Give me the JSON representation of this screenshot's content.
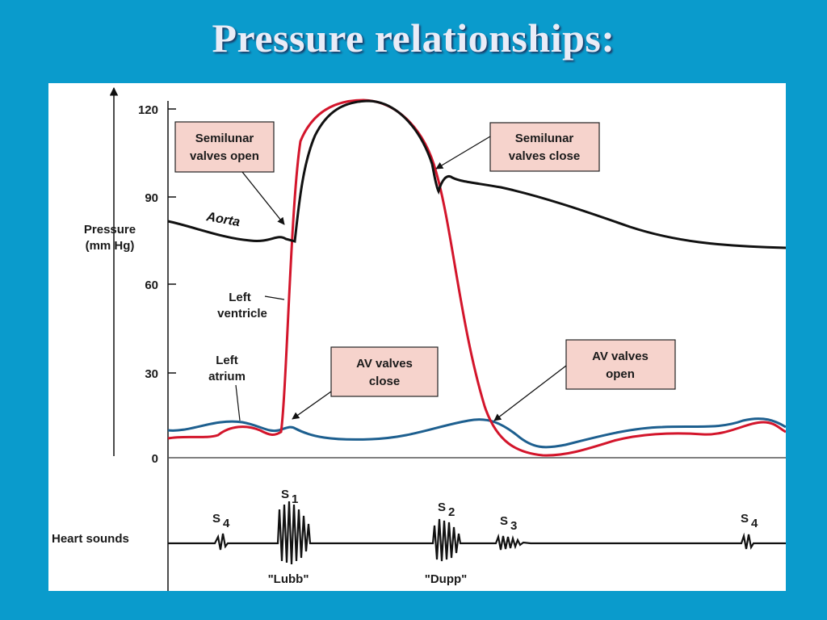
{
  "title": "Pressure relationships:",
  "axis": {
    "ylabel_line1": "Pressure",
    "ylabel_line2": "(mm Hg)",
    "ticks": [
      "120",
      "90",
      "60",
      "30",
      "0"
    ]
  },
  "curves": {
    "aorta": "Aorta",
    "left_ventricle_line1": "Left",
    "left_ventricle_line2": "ventricle",
    "left_atrium_line1": "Left",
    "left_atrium_line2": "atrium",
    "colors": {
      "aorta": "#111111",
      "left_ventricle": "#d3152b",
      "left_atrium": "#1d5f8f"
    }
  },
  "callouts": {
    "semilunar_open": [
      "Semilunar",
      "valves open"
    ],
    "semilunar_close": [
      "Semilunar",
      "valves close"
    ],
    "av_close": [
      "AV valves",
      "close"
    ],
    "av_open": [
      "AV valves",
      "open"
    ],
    "box_color": "#f6d3cc"
  },
  "heart_sounds": {
    "label": "Heart sounds",
    "s4_first": {
      "main": "S",
      "sub": "4"
    },
    "s1": {
      "main": "S",
      "sub": "1"
    },
    "s2": {
      "main": "S",
      "sub": "2"
    },
    "s3": {
      "main": "S",
      "sub": "3"
    },
    "s4_last": {
      "main": "S",
      "sub": "4"
    },
    "lubb": "\"Lubb\"",
    "dupp": "\"Dupp\""
  }
}
